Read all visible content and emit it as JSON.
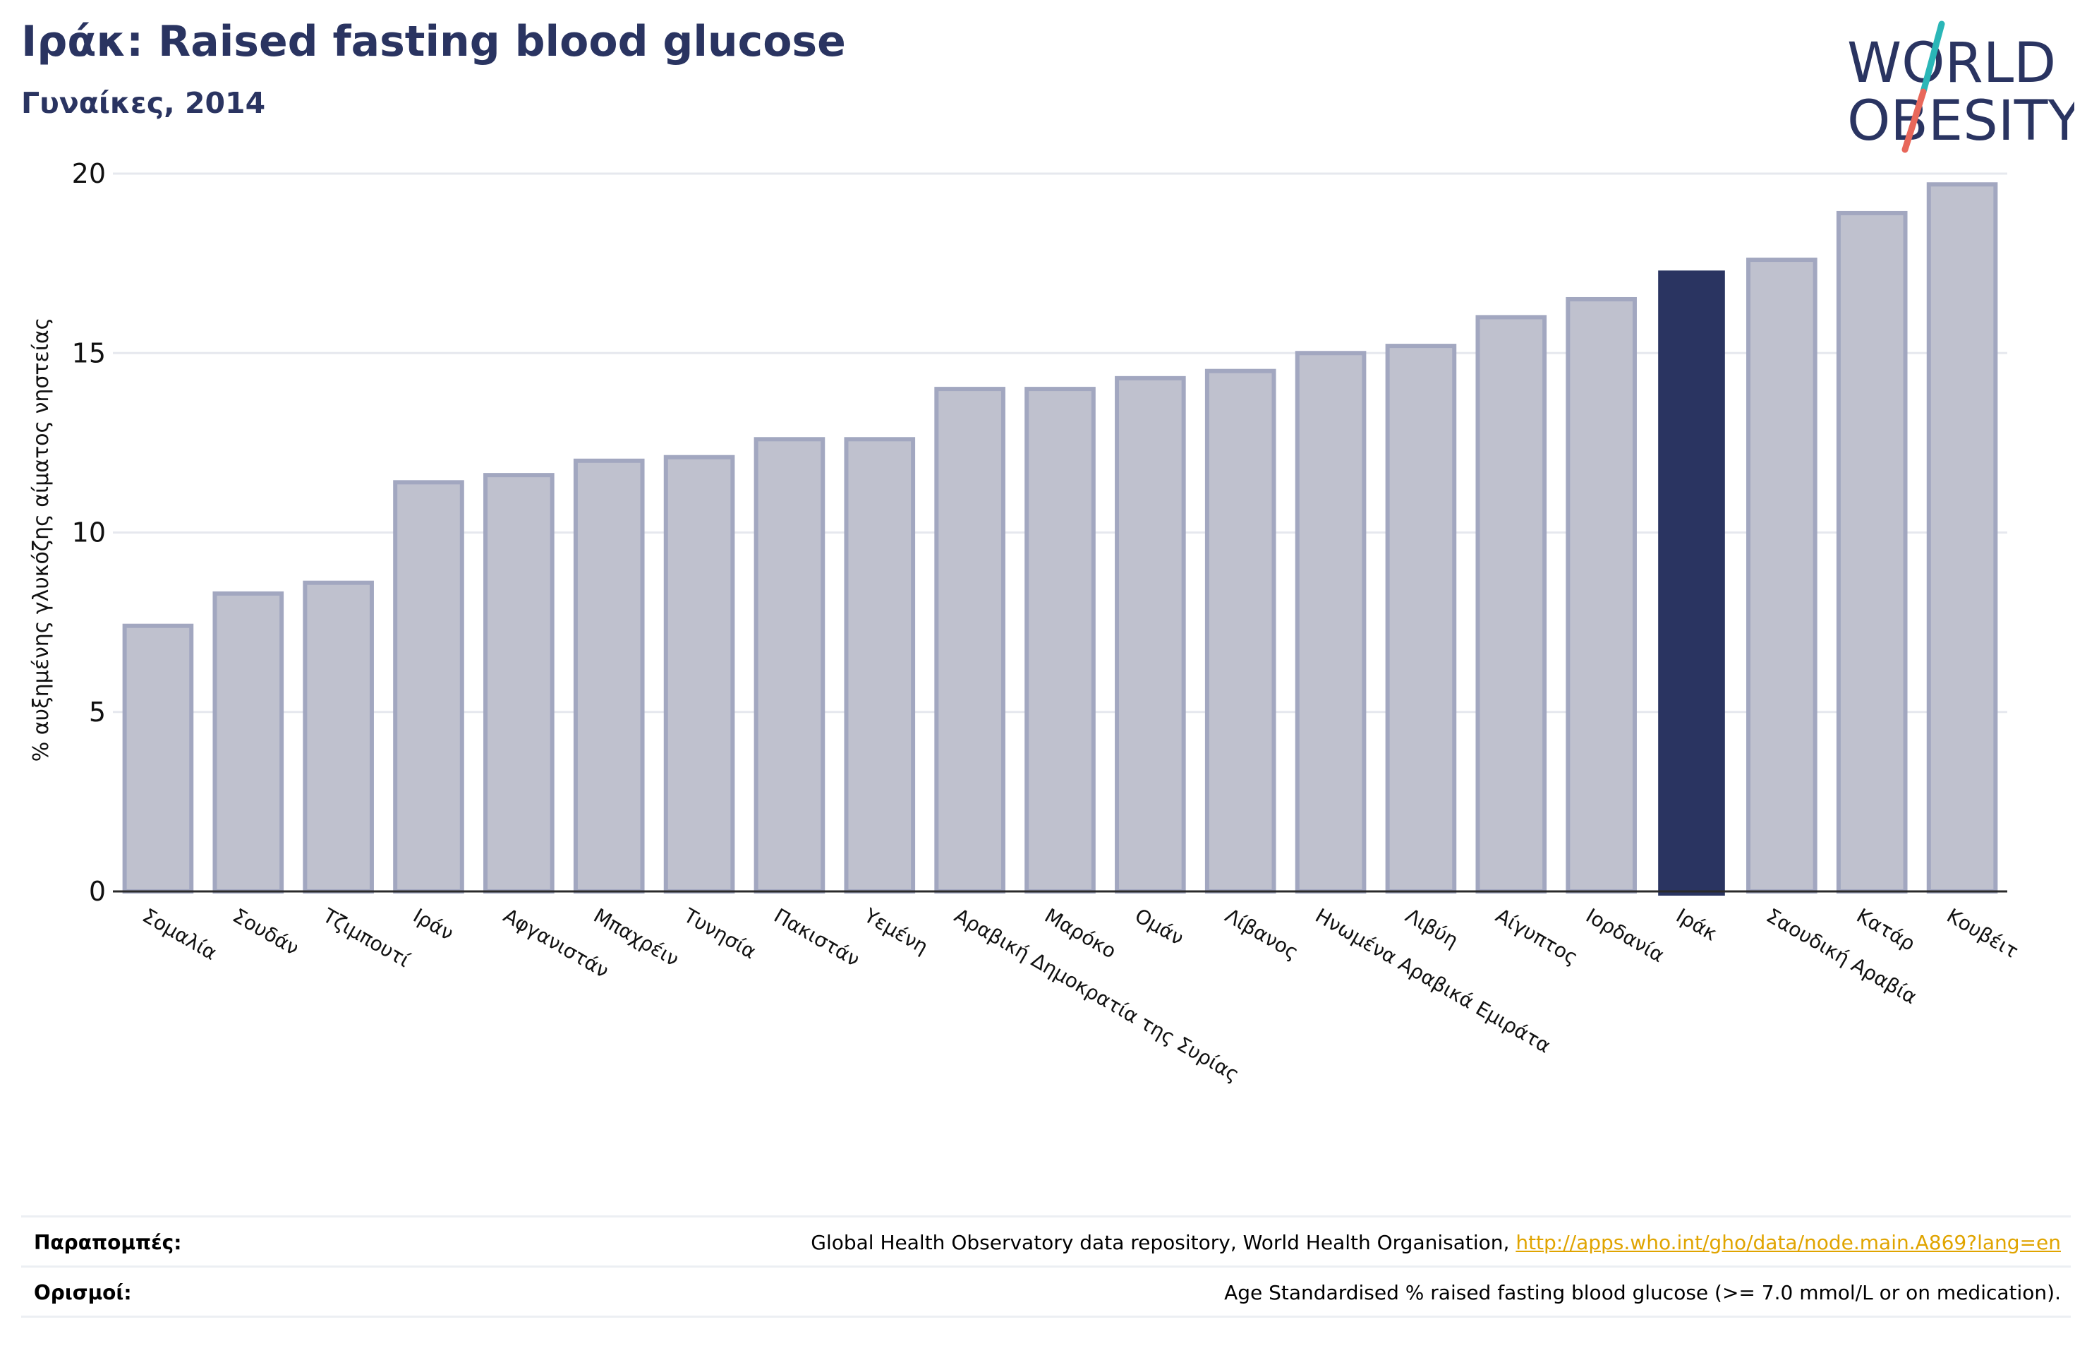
{
  "header": {
    "title": "Ιράκ: Raised fasting blood glucose",
    "subtitle": "Γυναίκες, 2014"
  },
  "logo": {
    "line1": "WORLD",
    "line2": "OBESITY",
    "colors": {
      "navy": "#2a3461",
      "teal": "#2ab6b7",
      "coral": "#e8675a"
    }
  },
  "chart_data": {
    "type": "bar",
    "title": "Ιράκ: Raised fasting blood glucose",
    "subtitle": "Γυναίκες, 2014",
    "ylabel": "% αυξημένης γλυκόζης αίματος νηστείας",
    "xlabel": "",
    "ylim": [
      0,
      20
    ],
    "yticks": [
      0,
      5,
      10,
      15,
      20
    ],
    "grid": true,
    "highlight": "Ιράκ",
    "colors": {
      "bar": "#bfc1ce",
      "bar_edge": "#a2a7c0",
      "highlight": "#2a3461",
      "axis": "#2a2a2a",
      "grid": "#e6e8ee"
    },
    "categories": [
      "Σομαλία",
      "Σουδάν",
      "Τζιμπουτί",
      "Ιράν",
      "Αφγανιστάν",
      "Μπαχρέιν",
      "Τυνησία",
      "Πακιστάν",
      "Υεμένη",
      "Αραβική Δημοκρατία της Συρίας",
      "Μαρόκο",
      "Ομάν",
      "Λίβανος",
      "Ηνωμένα Αραβικά Εμιράτα",
      "Λιβύη",
      "Αίγυπτος",
      "Ιορδανία",
      "Ιράκ",
      "Σαουδική Αραβία",
      "Κατάρ",
      "Κουβέιτ"
    ],
    "values": [
      7.4,
      8.3,
      8.6,
      11.4,
      11.6,
      12.0,
      12.1,
      12.6,
      12.6,
      14.0,
      14.0,
      14.3,
      14.5,
      15.0,
      15.2,
      16.0,
      16.5,
      17.3,
      17.6,
      18.9,
      19.7
    ]
  },
  "references": {
    "label": "Παραπομπές:",
    "text": "Global Health Observatory data repository, World Health Organisation, ",
    "link": "http://apps.who.int/gho/data/node.main.A869?lang=en"
  },
  "definitions": {
    "label": "Ορισμοί:",
    "text": "Age Standardised % raised fasting blood glucose (>= 7.0 mmol/L or on medication)."
  }
}
